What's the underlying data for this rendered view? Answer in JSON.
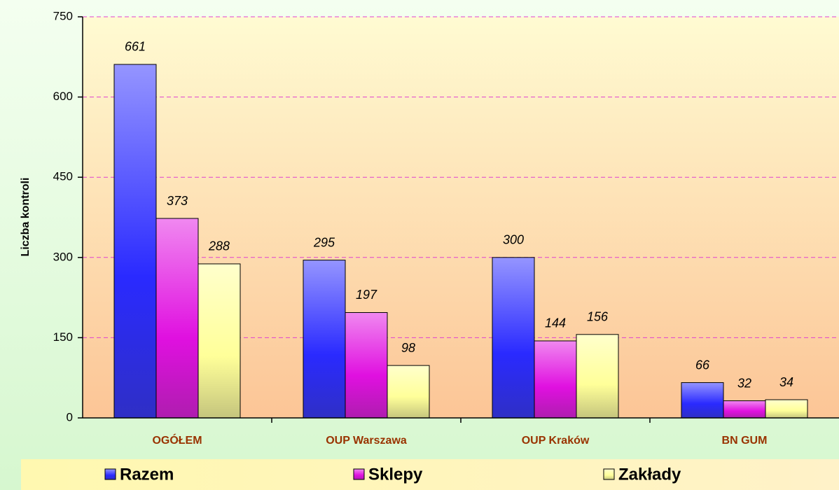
{
  "chart_data": {
    "type": "bar",
    "y_label": "Liczba kontroli",
    "categories": [
      "OGÓŁEM",
      "OUP Warszawa",
      "OUP Kraków",
      "BN GUM"
    ],
    "series": [
      {
        "name": "Razem",
        "color": "#2a2aff",
        "values": [
          661,
          295,
          300,
          66
        ]
      },
      {
        "name": "Sklepy",
        "color": "#e010e0",
        "values": [
          373,
          197,
          144,
          32
        ]
      },
      {
        "name": "Zakłady",
        "color": "#ffff99",
        "values": [
          288,
          98,
          156,
          34
        ]
      }
    ],
    "ylim": [
      0,
      750
    ],
    "yticks": [
      0,
      150,
      300,
      450,
      600,
      750
    ],
    "grid": true,
    "legend": "bottom"
  }
}
